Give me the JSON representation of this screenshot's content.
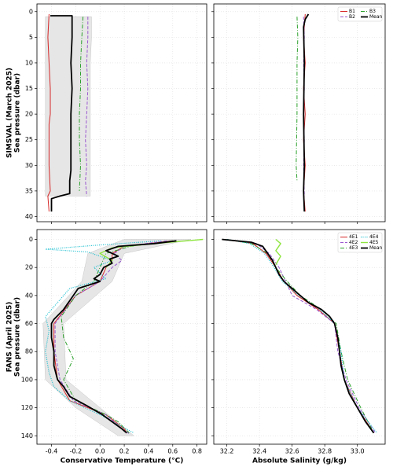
{
  "chart_data": [
    {
      "type": "line",
      "ylabel": [
        "SIMSVAL (March 2025)",
        "Sea pressure (dbar)"
      ],
      "xlim": [
        -0.52,
        0.88
      ],
      "xticks": [
        -0.4,
        -0.2,
        {
          "value": 0,
          "label": "0.0"
        },
        0.2,
        0.4,
        0.6,
        0.8
      ],
      "show_xtick_labels": false,
      "ylim": [
        -1.5,
        41
      ],
      "y_inverted": true,
      "yticks": [
        0,
        5,
        10,
        15,
        20,
        25,
        30,
        35,
        40
      ],
      "show_ytick_labels": true,
      "grid": true,
      "spread": {
        "color": "#e6e6e6",
        "depth": [
          1,
          5,
          10,
          20,
          30,
          35,
          36
        ],
        "low": [
          -0.45,
          -0.45,
          -0.45,
          -0.45,
          -0.45,
          -0.45,
          -0.45
        ],
        "high": [
          -0.07,
          -0.07,
          -0.08,
          -0.08,
          -0.08,
          -0.08,
          -0.08
        ]
      },
      "series": [
        {
          "name": "B1",
          "color": "#d62728",
          "dash": "solid",
          "linewidth": 1,
          "depth": [
            0.5,
            5,
            10,
            15,
            20,
            22,
            25,
            30,
            35,
            36,
            39
          ],
          "values": [
            -0.42,
            -0.43,
            -0.42,
            -0.41,
            -0.41,
            -0.42,
            -0.42,
            -0.42,
            -0.41,
            -0.43,
            -0.42
          ]
        },
        {
          "name": "B2",
          "color": "#9b59d0",
          "dash": "dashed",
          "linewidth": 1,
          "depth": [
            1,
            5,
            10,
            15,
            20,
            25,
            30,
            33,
            36
          ],
          "values": [
            -0.1,
            -0.1,
            -0.11,
            -0.1,
            -0.11,
            -0.12,
            -0.11,
            -0.12,
            -0.11
          ]
        },
        {
          "name": "B3",
          "color": "#2ca02c",
          "dash": "dashdot",
          "linewidth": 1,
          "depth": [
            1,
            5,
            10,
            15,
            20,
            25,
            30,
            35
          ],
          "values": [
            -0.14,
            -0.15,
            -0.16,
            -0.16,
            -0.17,
            -0.17,
            -0.16,
            -0.17
          ]
        },
        {
          "name": "Mean",
          "color": "#000000",
          "dash": "solid",
          "linewidth": 1.8,
          "depth": [
            0.8,
            0.8,
            5,
            10,
            15,
            20,
            25,
            31,
            33,
            35.5,
            36,
            36.5,
            39
          ],
          "values": [
            -0.41,
            -0.23,
            -0.23,
            -0.24,
            -0.23,
            -0.24,
            -0.24,
            -0.24,
            -0.25,
            -0.25,
            -0.33,
            -0.4,
            -0.4
          ]
        }
      ]
    },
    {
      "type": "line",
      "legend": "upper right",
      "legend_columns": 2,
      "xlim": [
        32.12,
        33.17
      ],
      "xticks": [
        32.2,
        32.4,
        32.6,
        32.8,
        {
          "value": 33,
          "label": "33.0"
        }
      ],
      "show_xtick_labels": false,
      "ylim": [
        -1.5,
        41
      ],
      "y_inverted": true,
      "yticks": [
        0,
        5,
        10,
        15,
        20,
        25,
        30,
        35,
        40
      ],
      "show_ytick_labels": false,
      "grid": true,
      "series": [
        {
          "name": "B1",
          "color": "#d62728",
          "dash": "solid",
          "linewidth": 1,
          "depth": [
            0.5,
            5,
            10,
            15,
            20,
            25,
            30,
            35,
            39
          ],
          "values": [
            32.68,
            32.67,
            32.68,
            32.67,
            32.68,
            32.67,
            32.68,
            32.67,
            32.68
          ]
        },
        {
          "name": "B2",
          "color": "#9b59d0",
          "dash": "dashed",
          "linewidth": 1,
          "depth": [
            1,
            5,
            10,
            15,
            20,
            25,
            30,
            36
          ],
          "values": [
            32.67,
            32.675,
            32.67,
            32.675,
            32.67,
            32.675,
            32.67,
            32.675
          ]
        },
        {
          "name": "B3",
          "color": "#2ca02c",
          "dash": "dashdot",
          "linewidth": 1,
          "depth": [
            1,
            5,
            10,
            20,
            30,
            33
          ],
          "values": [
            32.63,
            32.635,
            32.63,
            32.63,
            32.625,
            32.63
          ]
        },
        {
          "name": "Mean",
          "color": "#000000",
          "dash": "solid",
          "linewidth": 1.8,
          "depth": [
            0.5,
            1.5,
            3,
            10,
            20,
            30,
            35,
            39
          ],
          "values": [
            32.7,
            32.68,
            32.67,
            32.675,
            32.67,
            32.675,
            32.67,
            32.675
          ]
        }
      ]
    },
    {
      "type": "line",
      "ylabel": [
        "FANS (April 2025)",
        "Sea pressure (dbar)"
      ],
      "xlabel": "Conservative Temperature (°C)",
      "xlim": [
        -0.52,
        0.88
      ],
      "xticks": [
        -0.4,
        -0.2,
        {
          "value": 0,
          "label": "0.0"
        },
        0.2,
        0.4,
        0.6,
        0.8
      ],
      "show_xtick_labels": true,
      "ylim": [
        -7,
        146
      ],
      "y_inverted": true,
      "yticks": [
        0,
        20,
        40,
        60,
        80,
        100,
        120,
        140
      ],
      "show_ytick_labels": true,
      "grid": true,
      "spread": {
        "color": "#e6e6e6",
        "depth": [
          0,
          10,
          30,
          60,
          100,
          120,
          140
        ],
        "low": [
          0.2,
          -0.1,
          -0.15,
          -0.47,
          -0.45,
          -0.2,
          0.15
        ],
        "high": [
          0.75,
          0.2,
          0.1,
          -0.3,
          -0.28,
          0,
          0.28
        ]
      },
      "series": [
        {
          "name": "4E1",
          "color": "#d62728",
          "dash": "solid",
          "linewidth": 1,
          "depth": [
            1,
            5,
            10,
            15,
            20,
            30,
            40,
            60,
            80,
            100,
            115,
            125,
            135,
            138
          ],
          "values": [
            0.6,
            0.2,
            0.1,
            0.1,
            0.05,
            0,
            -0.2,
            -0.38,
            -0.38,
            -0.35,
            -0.25,
            0.05,
            0.2,
            0.22
          ]
        },
        {
          "name": "4E2",
          "color": "#9b59d0",
          "dash": "dashed",
          "linewidth": 1,
          "depth": [
            1,
            5,
            10,
            15,
            20,
            25,
            30,
            40,
            60,
            80,
            100,
            115,
            125,
            135,
            139
          ],
          "values": [
            0.55,
            0.2,
            0.12,
            0.18,
            0.1,
            0.05,
            0,
            -0.2,
            -0.37,
            -0.37,
            -0.33,
            -0.22,
            0.05,
            0.18,
            0.25
          ]
        },
        {
          "name": "4E3",
          "color": "#2ca02c",
          "dash": "dashdot",
          "linewidth": 1,
          "depth": [
            1,
            5,
            10,
            20,
            30,
            40,
            55,
            70,
            85,
            100,
            115,
            125,
            130,
            138
          ],
          "values": [
            0.6,
            0.25,
            0.05,
            0,
            -0.05,
            -0.2,
            -0.32,
            -0.3,
            -0.22,
            -0.3,
            -0.2,
            0.05,
            0.15,
            0.24
          ]
        },
        {
          "name": "4E4",
          "color": "#17becf",
          "dash": "dotted",
          "linewidth": 1.2,
          "depth": [
            1,
            4,
            7,
            9,
            15,
            20,
            28,
            35,
            45,
            55,
            65,
            80,
            95,
            105,
            115,
            125,
            132,
            138
          ],
          "values": [
            0.5,
            0,
            -0.45,
            -0.1,
            0.1,
            -0.05,
            0.05,
            -0.25,
            -0.35,
            -0.45,
            -0.42,
            -0.45,
            -0.42,
            -0.38,
            -0.25,
            0,
            0.15,
            0.28
          ]
        },
        {
          "name": "4E5",
          "color": "#8ee53f",
          "dash": "solid",
          "linewidth": 1.4,
          "depth": [
            0,
            3,
            6,
            10,
            15,
            20
          ],
          "values": [
            0.85,
            0.45,
            0.1,
            0,
            0.1,
            0.05
          ]
        },
        {
          "name": "Mean",
          "color": "#000000",
          "dash": "solid",
          "linewidth": 1.8,
          "depth": [
            1,
            3,
            5,
            8,
            10,
            12,
            14,
            17,
            20,
            25,
            28,
            30,
            35,
            40,
            50,
            57,
            60,
            70,
            80,
            90,
            100,
            105,
            112,
            118,
            125,
            130,
            135,
            138
          ],
          "values": [
            0.63,
            0.45,
            0.15,
            0.05,
            0.1,
            0.15,
            0.08,
            0.1,
            0.03,
            0,
            -0.05,
            0,
            -0.18,
            -0.22,
            -0.3,
            -0.38,
            -0.4,
            -0.4,
            -0.38,
            -0.38,
            -0.35,
            -0.3,
            -0.25,
            -0.12,
            0.02,
            0.1,
            0.18,
            0.22
          ]
        }
      ]
    },
    {
      "type": "line",
      "legend": "upper right",
      "legend_columns": 2,
      "xlabel": "Absolute Salinity (g/kg)",
      "xlim": [
        32.12,
        33.17
      ],
      "xticks": [
        32.2,
        32.4,
        32.6,
        32.8,
        {
          "value": 33,
          "label": "33.0"
        }
      ],
      "show_xtick_labels": true,
      "ylim": [
        -7,
        146
      ],
      "y_inverted": true,
      "yticks": [
        0,
        20,
        40,
        60,
        80,
        100,
        120,
        140
      ],
      "show_ytick_labels": false,
      "grid": true,
      "series": [
        {
          "name": "4E1",
          "color": "#d62728",
          "dash": "solid",
          "linewidth": 1,
          "depth": [
            0,
            3,
            10,
            20,
            30,
            40,
            50,
            60,
            80,
            100,
            120,
            138
          ],
          "values": [
            32.18,
            32.36,
            32.44,
            32.5,
            32.55,
            32.63,
            32.76,
            32.86,
            32.89,
            32.92,
            33,
            33.1
          ]
        },
        {
          "name": "4E2",
          "color": "#9b59d0",
          "dash": "dashed",
          "linewidth": 1,
          "depth": [
            0,
            3,
            10,
            20,
            30,
            40,
            50,
            60,
            80,
            100,
            120,
            138
          ],
          "values": [
            32.2,
            32.38,
            32.46,
            32.52,
            32.56,
            32.6,
            32.75,
            32.86,
            32.88,
            32.93,
            33.01,
            33.11
          ]
        },
        {
          "name": "4E3",
          "color": "#2ca02c",
          "dash": "dashdot",
          "linewidth": 1,
          "depth": [
            0,
            3,
            10,
            20,
            30,
            40,
            50,
            60,
            80,
            100,
            120,
            138
          ],
          "values": [
            32.2,
            32.35,
            32.45,
            32.5,
            32.57,
            32.65,
            32.78,
            32.87,
            32.9,
            32.94,
            33.02,
            33.1
          ]
        },
        {
          "name": "4E4",
          "color": "#17becf",
          "dash": "dotted",
          "linewidth": 1.2,
          "depth": [
            0,
            3,
            10,
            20,
            30,
            40,
            50,
            60,
            80,
            100,
            120,
            138
          ],
          "values": [
            32.2,
            32.34,
            32.43,
            32.49,
            32.54,
            32.64,
            32.77,
            32.86,
            32.9,
            32.92,
            33,
            33.12
          ]
        },
        {
          "name": "4E5",
          "color": "#8ee53f",
          "dash": "solid",
          "linewidth": 1.4,
          "depth": [
            0,
            3,
            8,
            12,
            18
          ],
          "values": [
            32.5,
            32.53,
            32.5,
            32.53,
            32.5
          ]
        },
        {
          "name": "Mean",
          "color": "#000000",
          "dash": "solid",
          "linewidth": 1.8,
          "depth": [
            0,
            2,
            5,
            10,
            15,
            20,
            25,
            30,
            35,
            40,
            45,
            50,
            55,
            60,
            70,
            80,
            90,
            100,
            110,
            120,
            130,
            138
          ],
          "values": [
            32.17,
            32.35,
            32.42,
            32.45,
            32.48,
            32.5,
            32.52,
            32.55,
            32.6,
            32.65,
            32.7,
            32.78,
            32.83,
            32.86,
            32.88,
            32.89,
            32.9,
            32.92,
            32.95,
            33,
            33.05,
            33.1
          ]
        }
      ]
    }
  ]
}
